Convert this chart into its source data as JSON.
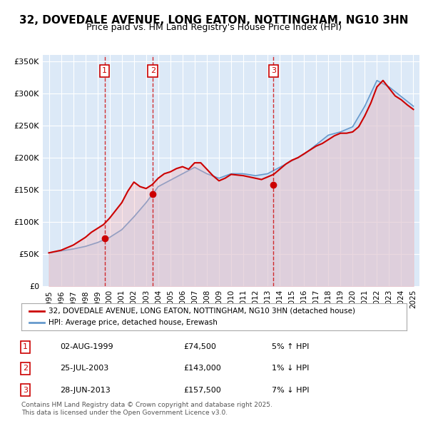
{
  "title": "32, DOVEDALE AVENUE, LONG EATON, NOTTINGHAM, NG10 3HN",
  "subtitle": "Price paid vs. HM Land Registry's House Price Index (HPI)",
  "years": [
    1995,
    1996,
    1997,
    1998,
    1999,
    2000,
    2001,
    2002,
    2003,
    2004,
    2005,
    2006,
    2007,
    2008,
    2009,
    2010,
    2011,
    2012,
    2013,
    2014,
    2015,
    2016,
    2017,
    2018,
    2019,
    2020,
    2021,
    2022,
    2023,
    2024,
    2025
  ],
  "hpi_values": [
    52000,
    55000,
    58000,
    62000,
    68000,
    76000,
    88000,
    108000,
    130000,
    155000,
    165000,
    175000,
    185000,
    175000,
    168000,
    175000,
    175000,
    172000,
    175000,
    185000,
    195000,
    205000,
    220000,
    235000,
    240000,
    248000,
    280000,
    320000,
    310000,
    295000,
    280000
  ],
  "red_line_dates": [
    1995.0,
    1995.5,
    1996.0,
    1996.5,
    1997.0,
    1997.5,
    1998.0,
    1998.5,
    1999.0,
    1999.5,
    2000.0,
    2000.5,
    2001.0,
    2001.5,
    2002.0,
    2002.5,
    2003.0,
    2003.5,
    2004.0,
    2004.5,
    2005.0,
    2005.5,
    2006.0,
    2006.5,
    2007.0,
    2007.5,
    2008.0,
    2008.5,
    2009.0,
    2009.5,
    2010.0,
    2010.5,
    2011.0,
    2011.5,
    2012.0,
    2012.5,
    2013.0,
    2013.5,
    2014.0,
    2014.5,
    2015.0,
    2015.5,
    2016.0,
    2016.5,
    2017.0,
    2017.5,
    2018.0,
    2018.5,
    2019.0,
    2019.5,
    2020.0,
    2020.5,
    2021.0,
    2021.5,
    2022.0,
    2022.5,
    2023.0,
    2023.5,
    2024.0,
    2024.5,
    2025.0
  ],
  "red_line_values": [
    52000,
    54000,
    56000,
    60000,
    64000,
    70000,
    76000,
    84000,
    90000,
    96000,
    106000,
    118000,
    130000,
    148000,
    162000,
    155000,
    152000,
    158000,
    168000,
    175000,
    178000,
    183000,
    186000,
    182000,
    192000,
    192000,
    182000,
    172000,
    164000,
    168000,
    174000,
    173000,
    172000,
    170000,
    168000,
    166000,
    170000,
    174000,
    182000,
    190000,
    196000,
    200000,
    206000,
    212000,
    218000,
    222000,
    228000,
    234000,
    238000,
    238000,
    240000,
    248000,
    265000,
    285000,
    310000,
    320000,
    308000,
    296000,
    290000,
    282000,
    275000
  ],
  "sale1_year": 1999.58,
  "sale1_price": 74500,
  "sale2_year": 2003.56,
  "sale2_price": 143000,
  "sale3_year": 2013.49,
  "sale3_price": 157500,
  "bg_color": "#dce9f7",
  "plot_bg": "#dce9f7",
  "line_color_red": "#cc0000",
  "line_color_blue": "#6699cc",
  "fill_color_blue": "#c5d9f0",
  "xlim_min": 1994.5,
  "xlim_max": 2025.5,
  "ylim_min": 0,
  "ylim_max": 360000,
  "ylabel_ticks": [
    0,
    50000,
    100000,
    150000,
    200000,
    250000,
    300000,
    350000
  ],
  "ylabel_labels": [
    "£0",
    "£50K",
    "£100K",
    "£150K",
    "£200K",
    "£250K",
    "£300K",
    "£350K"
  ],
  "xtick_years": [
    1995,
    1996,
    1997,
    1998,
    1999,
    2000,
    2001,
    2002,
    2003,
    2004,
    2005,
    2006,
    2007,
    2008,
    2009,
    2010,
    2011,
    2012,
    2013,
    2014,
    2015,
    2016,
    2017,
    2018,
    2019,
    2020,
    2021,
    2022,
    2023,
    2024,
    2025
  ],
  "legend_line1": "32, DOVEDALE AVENUE, LONG EATON, NOTTINGHAM, NG10 3HN (detached house)",
  "legend_line2": "HPI: Average price, detached house, Erewash",
  "table": [
    {
      "num": "1",
      "date": "02-AUG-1999",
      "price": "£74,500",
      "hpi": "5% ↑ HPI"
    },
    {
      "num": "2",
      "date": "25-JUL-2003",
      "price": "£143,000",
      "hpi": "1% ↓ HPI"
    },
    {
      "num": "3",
      "date": "28-JUN-2013",
      "price": "£157,500",
      "hpi": "7% ↓ HPI"
    }
  ],
  "footer": "Contains HM Land Registry data © Crown copyright and database right 2025.\nThis data is licensed under the Open Government Licence v3.0."
}
